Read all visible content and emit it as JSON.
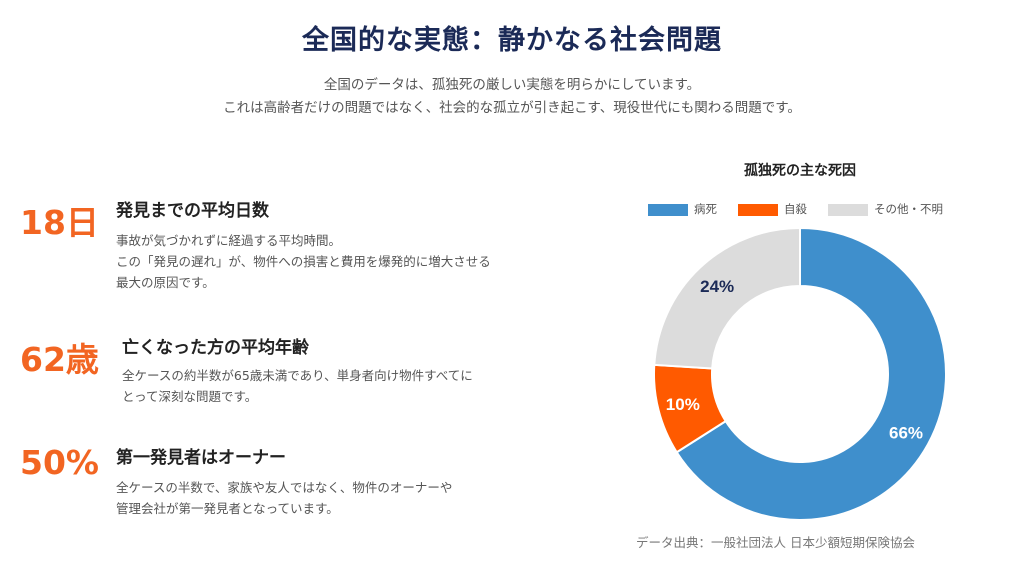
{
  "header": {
    "title": "全国的な実態：静かなる社会問題",
    "subtitle_line1": "全国のデータは、孤独死の厳しい実態を明らかにしています。",
    "subtitle_line2": "これは高齢者だけの問題ではなく、社会的な孤立が引き起こす、現役世代にも関わる問題です。"
  },
  "stats": [
    {
      "number": "18日",
      "heading": "発見までの平均日数",
      "desc": [
        "事故が気づかれずに経過する平均時間。",
        "この「発見の遅れ」が、物件への損害と費用を爆発的に増大させる",
        "最大の原因です。"
      ]
    },
    {
      "number": "62歳",
      "heading": "亡くなった方の平均年齢",
      "desc": [
        "全ケースの約半数が65歳未満であり、単身者向け物件すべてに",
        "とって深刻な問題です。"
      ]
    },
    {
      "number": "50%",
      "heading": "第一発見者はオーナー",
      "desc": [
        "全ケースの半数で、家族や友人ではなく、物件のオーナーや",
        "管理会社が第一発見者となっています。"
      ]
    }
  ],
  "chart_data": {
    "type": "pie",
    "donut": true,
    "title": "孤独死の主な死因",
    "legend_position": "top",
    "categories": [
      "病死",
      "自殺",
      "その他・不明"
    ],
    "values": [
      66,
      10,
      24
    ],
    "labels": [
      "66%",
      "10%",
      "24%"
    ],
    "colors": [
      "#3f8fcc",
      "#ff5a00",
      "#dcdcdc"
    ],
    "label_colors": [
      "#ffffff",
      "#ffffff",
      "#1b2a57"
    ]
  },
  "source": "データ出典：一般社団法人 日本少額短期保険協会"
}
